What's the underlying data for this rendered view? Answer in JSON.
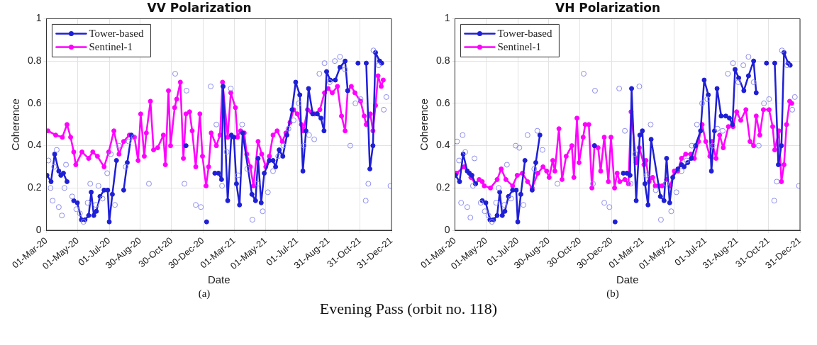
{
  "chart_data": [
    {
      "type": "line",
      "title": "VV Polarization",
      "xlabel": "Date",
      "ylabel": "Coherence",
      "annotations": [
        "(a)",
        "Evening Pass (orbit no. 118)"
      ],
      "xlim": [
        "2020-03-01",
        "2021-12-31"
      ],
      "xticks": [
        {
          "value": "2020-03-01",
          "label": "01-Mar-20"
        },
        {
          "value": "2020-05-01",
          "label": "01-May-20"
        },
        {
          "value": "2020-07-01",
          "label": "01-Jul-20"
        },
        {
          "value": "2020-08-30",
          "label": "30-Aug-20"
        },
        {
          "value": "2020-10-30",
          "label": "30-Oct-20"
        },
        {
          "value": "2020-12-30",
          "label": "30-Dec-20"
        },
        {
          "value": "2021-03-01",
          "label": "01-Mar-21"
        },
        {
          "value": "2021-05-01",
          "label": "01-May-21"
        },
        {
          "value": "2021-07-01",
          "label": "01-Jul-21"
        },
        {
          "value": "2021-08-31",
          "label": "31-Aug-21"
        },
        {
          "value": "2021-10-31",
          "label": "31-Oct-21"
        },
        {
          "value": "2021-12-31",
          "label": "31-Dec-21"
        }
      ],
      "ylim": [
        0,
        1
      ],
      "yticks": [
        0,
        0.2,
        0.4,
        0.6,
        0.8,
        1
      ],
      "grid": true,
      "legend": "top left",
      "marker": "circle",
      "series": [
        {
          "type": "scatter",
          "color": "#8c8cf0",
          "x": [
            "2020-03-05",
            "2020-03-09",
            "2020-03-13",
            "2020-03-16",
            "2020-03-21",
            "2020-03-25",
            "2020-03-31",
            "2020-04-05",
            "2020-04-08",
            "2020-04-20",
            "2020-04-28",
            "2020-05-05",
            "2020-05-12",
            "2020-05-20",
            "2020-05-25",
            "2020-06-05",
            "2020-06-10",
            "2020-06-18",
            "2020-06-27",
            "2020-07-04",
            "2020-07-12",
            "2020-07-20",
            "2020-08-02",
            "2020-08-08",
            "2020-08-18",
            "2020-09-16",
            "2020-11-06",
            "2020-11-24",
            "2020-11-28",
            "2020-12-16",
            "2020-12-26",
            "2021-01-14",
            "2021-01-25",
            "2021-02-05",
            "2021-02-14",
            "2021-02-22",
            "2021-03-08",
            "2021-03-16",
            "2021-03-26",
            "2021-04-05",
            "2021-04-15",
            "2021-04-25",
            "2021-05-05",
            "2021-05-15",
            "2021-05-25",
            "2021-06-04",
            "2021-06-14",
            "2021-06-24",
            "2021-07-04",
            "2021-07-14",
            "2021-07-24",
            "2021-08-03",
            "2021-08-13",
            "2021-08-23",
            "2021-09-02",
            "2021-09-12",
            "2021-09-22",
            "2021-10-02",
            "2021-10-12",
            "2021-10-22",
            "2021-11-01",
            "2021-11-11",
            "2021-11-16",
            "2021-11-26",
            "2021-12-06",
            "2021-12-16",
            "2021-12-21",
            "2021-12-29"
          ],
          "values": [
            0.33,
            0.2,
            0.14,
            0.3,
            0.38,
            0.11,
            0.07,
            0.2,
            0.31,
            0.16,
            0.1,
            0.08,
            0.04,
            0.13,
            0.22,
            0.12,
            0.21,
            0.15,
            0.27,
            0.36,
            0.12,
            0.4,
            0.3,
            0.42,
            0.44,
            0.22,
            0.74,
            0.22,
            0.66,
            0.12,
            0.11,
            0.68,
            0.5,
            0.21,
            0.37,
            0.67,
            0.26,
            0.5,
            0.29,
            0.05,
            0.22,
            0.09,
            0.18,
            0.28,
            0.35,
            0.4,
            0.48,
            0.52,
            0.6,
            0.4,
            0.45,
            0.43,
            0.74,
            0.79,
            0.7,
            0.8,
            0.82,
            0.76,
            0.4,
            0.6,
            0.62,
            0.14,
            0.22,
            0.85,
            0.78,
            0.57,
            0.63,
            0.21
          ]
        },
        {
          "name": "Tower-based",
          "color": "#1f1fd6",
          "x": [
            "2020-03-02",
            "2020-03-10",
            "2020-03-17",
            "2020-03-25",
            "2020-03-29",
            "2020-04-03",
            "2020-04-10",
            "2020-04-15",
            "2020-04-23",
            "2020-04-30",
            "2020-05-08",
            "2020-05-15",
            "2020-05-22",
            "2020-05-27",
            "2020-06-01",
            "2020-06-06",
            "2020-06-13",
            "2020-06-21",
            "2020-06-28",
            "2020-07-01",
            "2020-07-07",
            "2020-07-15",
            "2020-07-22",
            "2020-07-29",
            "2020-08-05",
            "2020-08-13",
            "2020-09-17",
            "2020-11-27",
            "2020-12-16",
            "2021-01-06",
            "2021-01-15",
            "2021-01-22",
            "2021-01-29",
            "2021-02-04",
            "2021-02-07",
            "2021-02-16",
            "2021-02-23",
            "2021-02-28",
            "2021-03-05",
            "2021-03-11",
            "2021-03-17",
            "2021-04-04",
            "2021-04-11",
            "2021-04-16",
            "2021-04-22",
            "2021-04-28",
            "2021-05-08",
            "2021-05-15",
            "2021-05-20",
            "2021-05-27",
            "2021-06-03",
            "2021-06-11",
            "2021-06-21",
            "2021-06-28",
            "2021-07-06",
            "2021-07-12",
            "2021-07-18",
            "2021-07-23",
            "2021-07-31",
            "2021-08-09",
            "2021-08-16",
            "2021-08-22",
            "2021-08-27",
            "2021-09-03",
            "2021-09-13",
            "2021-09-22",
            "2021-10-02",
            "2021-10-07",
            "2021-10-17",
            "2021-10-27",
            "2021-11-04",
            "2021-11-12",
            "2021-11-19",
            "2021-11-25",
            "2021-11-30",
            "2021-12-08",
            "2021-12-12"
          ],
          "values": [
            0.26,
            0.23,
            0.36,
            0.28,
            0.26,
            0.27,
            0.23,
            null,
            0.14,
            0.13,
            0.05,
            0.05,
            0.07,
            0.18,
            0.07,
            0.09,
            0.16,
            0.19,
            0.19,
            0.04,
            0.17,
            0.33,
            null,
            0.19,
            0.32,
            0.45,
            null,
            0.4,
            null,
            0.04,
            null,
            0.27,
            0.27,
            0.24,
            0.68,
            0.14,
            0.45,
            0.44,
            0.22,
            0.12,
            0.46,
            0.17,
            0.14,
            0.34,
            0.13,
            0.27,
            0.33,
            0.33,
            0.3,
            0.38,
            0.35,
            0.45,
            0.57,
            0.7,
            0.64,
            0.28,
            0.47,
            0.67,
            0.55,
            0.55,
            0.53,
            0.47,
            0.75,
            0.71,
            0.71,
            0.77,
            0.8,
            0.66,
            null,
            0.79,
            null,
            0.79,
            0.29,
            0.4,
            0.84,
            0.8,
            0.79
          ]
        },
        {
          "name": "Sentinel-1",
          "color": "#ff00ff",
          "x": [
            "2020-03-04",
            "2020-03-19",
            "2020-04-01",
            "2020-04-10",
            "2020-04-17",
            "2020-04-23",
            "2020-04-27",
            "2020-05-09",
            "2020-05-22",
            "2020-05-30",
            "2020-06-08",
            "2020-06-21",
            "2020-06-30",
            "2020-07-10",
            "2020-07-20",
            "2020-07-29",
            "2020-08-09",
            "2020-08-19",
            "2020-08-26",
            "2020-08-31",
            "2020-09-07",
            "2020-09-11",
            "2020-09-19",
            "2020-09-25",
            "2020-10-03",
            "2020-10-14",
            "2020-10-18",
            "2020-10-24",
            "2020-10-28",
            "2020-11-05",
            "2020-11-09",
            "2020-11-16",
            "2020-11-22",
            "2020-11-27",
            "2020-12-04",
            "2020-12-09",
            "2020-12-16",
            "2020-12-24",
            "2020-12-29",
            "2021-01-05",
            "2021-01-10",
            "2021-01-15",
            "2021-01-25",
            "2021-02-01",
            "2021-02-06",
            "2021-02-16",
            "2021-02-22",
            "2021-03-03",
            "2021-03-07",
            "2021-03-13",
            "2021-03-20",
            "2021-03-25",
            "2021-04-01",
            "2021-04-07",
            "2021-04-16",
            "2021-04-23",
            "2021-05-01",
            "2021-05-08",
            "2021-05-15",
            "2021-05-23",
            "2021-06-02",
            "2021-06-09",
            "2021-06-17",
            "2021-06-24",
            "2021-07-01",
            "2021-07-09",
            "2021-07-13",
            "2021-07-21",
            "2021-07-28",
            "2021-08-04",
            "2021-08-14",
            "2021-08-23",
            "2021-08-30",
            "2021-09-07",
            "2021-09-17",
            "2021-09-25",
            "2021-10-02",
            "2021-10-07",
            "2021-10-14",
            "2021-10-21",
            "2021-11-01",
            "2021-11-08",
            "2021-11-12",
            "2021-11-20",
            "2021-11-25",
            "2021-11-30",
            "2021-12-05",
            "2021-12-11",
            "2021-12-15"
          ],
          "values": [
            0.47,
            0.45,
            0.44,
            0.5,
            0.44,
            0.37,
            0.31,
            0.37,
            0.34,
            0.37,
            0.35,
            0.3,
            0.37,
            0.47,
            0.36,
            0.42,
            0.45,
            0.44,
            0.33,
            0.55,
            0.35,
            0.46,
            0.61,
            0.38,
            0.39,
            0.45,
            0.31,
            0.66,
            0.4,
            0.58,
            0.62,
            0.7,
            0.34,
            0.55,
            0.56,
            0.47,
            0.3,
            0.55,
            0.35,
            0.21,
            0.3,
            0.46,
            0.4,
            0.45,
            0.7,
            0.44,
            0.65,
            0.58,
            0.44,
            0.47,
            0.46,
            0.36,
            0.3,
            0.21,
            0.42,
            0.36,
            0.3,
            0.35,
            0.45,
            0.47,
            0.42,
            0.46,
            0.51,
            0.57,
            0.55,
            0.5,
            0.47,
            0.57,
            0.56,
            0.55,
            0.57,
            0.65,
            0.67,
            0.65,
            0.68,
            0.54,
            0.47,
            0.66,
            0.68,
            0.65,
            0.61,
            0.54,
            0.5,
            0.55,
            0.47,
            0.59,
            0.73,
            0.68,
            0.71
          ]
        }
      ]
    },
    {
      "type": "line",
      "title": "VH Polarization",
      "xlabel": "Date",
      "ylabel": "Coherence",
      "annotations": [
        "(b)"
      ],
      "xlim": [
        "2020-03-01",
        "2021-12-31"
      ],
      "xticks": [
        {
          "value": "2020-03-01",
          "label": "01-Mar-20"
        },
        {
          "value": "2020-05-01",
          "label": "01-May-20"
        },
        {
          "value": "2020-07-01",
          "label": "01-Jul-20"
        },
        {
          "value": "2020-08-30",
          "label": "30-Aug-20"
        },
        {
          "value": "2020-10-30",
          "label": "30-Oct-20"
        },
        {
          "value": "2020-12-30",
          "label": "30-Dec-20"
        },
        {
          "value": "2021-03-01",
          "label": "01-Mar-21"
        },
        {
          "value": "2021-05-01",
          "label": "01-May-21"
        },
        {
          "value": "2021-07-01",
          "label": "01-Jul-21"
        },
        {
          "value": "2021-08-31",
          "label": "31-Aug-21"
        },
        {
          "value": "2021-10-31",
          "label": "31-Oct-21"
        },
        {
          "value": "2021-12-31",
          "label": "31-Dec-21"
        }
      ],
      "ylim": [
        0,
        1
      ],
      "yticks": [
        0,
        0.2,
        0.4,
        0.6,
        0.8,
        1
      ],
      "grid": true,
      "legend": "top left",
      "marker": "circle",
      "series": [
        {
          "type": "scatter",
          "color": "#8c8cf0",
          "x": [
            "2020-03-05",
            "2020-03-09",
            "2020-03-13",
            "2020-03-16",
            "2020-03-21",
            "2020-03-25",
            "2020-03-31",
            "2020-04-05",
            "2020-04-08",
            "2020-04-20",
            "2020-04-28",
            "2020-05-05",
            "2020-05-12",
            "2020-05-20",
            "2020-05-25",
            "2020-06-05",
            "2020-06-10",
            "2020-06-18",
            "2020-06-27",
            "2020-07-04",
            "2020-07-12",
            "2020-07-20",
            "2020-08-02",
            "2020-08-08",
            "2020-08-18",
            "2020-09-16",
            "2020-11-06",
            "2020-11-24",
            "2020-11-28",
            "2020-12-16",
            "2020-12-26",
            "2021-01-14",
            "2021-01-25",
            "2021-02-05",
            "2021-02-14",
            "2021-02-22",
            "2021-03-08",
            "2021-03-16",
            "2021-03-26",
            "2021-04-05",
            "2021-04-15",
            "2021-04-25",
            "2021-05-05",
            "2021-05-15",
            "2021-05-25",
            "2021-06-04",
            "2021-06-14",
            "2021-06-24",
            "2021-07-04",
            "2021-07-14",
            "2021-07-24",
            "2021-08-03",
            "2021-08-13",
            "2021-08-23",
            "2021-09-02",
            "2021-09-12",
            "2021-09-22",
            "2021-10-02",
            "2021-10-12",
            "2021-10-22",
            "2021-11-01",
            "2021-11-11",
            "2021-11-16",
            "2021-11-26",
            "2021-12-06",
            "2021-12-16",
            "2021-12-21",
            "2021-12-29"
          ],
          "values": [
            0.42,
            0.33,
            0.13,
            0.45,
            0.37,
            0.11,
            0.06,
            0.21,
            0.34,
            0.13,
            0.09,
            0.07,
            0.04,
            0.13,
            0.2,
            0.12,
            0.31,
            0.15,
            0.4,
            0.39,
            0.12,
            0.45,
            0.29,
            0.47,
            0.38,
            0.22,
            0.74,
            0.22,
            0.66,
            0.13,
            0.11,
            0.67,
            0.47,
            0.22,
            0.36,
            0.68,
            0.26,
            0.5,
            0.19,
            0.05,
            0.22,
            0.09,
            0.18,
            0.28,
            0.33,
            0.4,
            0.5,
            0.6,
            0.62,
            0.4,
            0.48,
            0.47,
            0.74,
            0.79,
            0.7,
            0.78,
            0.82,
            0.7,
            0.4,
            0.6,
            0.62,
            0.14,
            0.23,
            0.85,
            0.78,
            0.57,
            0.63,
            0.21
          ]
        },
        {
          "name": "Tower-based",
          "color": "#1f1fd6",
          "x": [
            "2020-03-02",
            "2020-03-10",
            "2020-03-17",
            "2020-03-25",
            "2020-03-29",
            "2020-04-03",
            "2020-04-10",
            "2020-04-15",
            "2020-04-23",
            "2020-04-30",
            "2020-05-08",
            "2020-05-15",
            "2020-05-22",
            "2020-05-27",
            "2020-06-01",
            "2020-06-06",
            "2020-06-13",
            "2020-06-21",
            "2020-06-28",
            "2020-07-01",
            "2020-07-07",
            "2020-07-15",
            "2020-07-22",
            "2020-07-29",
            "2020-08-05",
            "2020-08-13",
            "2020-09-17",
            "2020-11-27",
            "2020-12-16",
            "2021-01-06",
            "2021-01-15",
            "2021-01-22",
            "2021-01-29",
            "2021-02-04",
            "2021-02-07",
            "2021-02-16",
            "2021-02-23",
            "2021-02-28",
            "2021-03-05",
            "2021-03-11",
            "2021-03-17",
            "2021-04-04",
            "2021-04-11",
            "2021-04-16",
            "2021-04-22",
            "2021-04-28",
            "2021-05-08",
            "2021-05-15",
            "2021-05-20",
            "2021-05-27",
            "2021-06-03",
            "2021-06-11",
            "2021-06-21",
            "2021-06-28",
            "2021-07-06",
            "2021-07-12",
            "2021-07-18",
            "2021-07-23",
            "2021-07-31",
            "2021-08-09",
            "2021-08-16",
            "2021-08-22",
            "2021-08-27",
            "2021-09-03",
            "2021-09-13",
            "2021-09-22",
            "2021-10-02",
            "2021-10-07",
            "2021-10-17",
            "2021-10-27",
            "2021-11-04",
            "2021-11-12",
            "2021-11-19",
            "2021-11-25",
            "2021-11-30",
            "2021-12-08",
            "2021-12-12"
          ],
          "values": [
            0.26,
            0.23,
            0.36,
            0.28,
            0.27,
            0.26,
            0.22,
            null,
            0.14,
            0.13,
            0.05,
            0.05,
            0.07,
            0.18,
            0.07,
            0.09,
            0.16,
            0.19,
            0.19,
            0.04,
            0.17,
            0.33,
            null,
            0.19,
            0.32,
            0.45,
            null,
            0.4,
            null,
            0.04,
            null,
            0.27,
            0.27,
            0.26,
            0.67,
            0.14,
            0.45,
            0.47,
            0.22,
            0.12,
            0.43,
            0.16,
            0.14,
            0.34,
            0.13,
            0.25,
            0.29,
            0.31,
            0.3,
            0.32,
            0.34,
            0.4,
            0.47,
            0.71,
            0.64,
            0.28,
            0.47,
            0.67,
            0.54,
            0.54,
            0.53,
            0.5,
            0.76,
            0.72,
            0.66,
            0.73,
            0.8,
            0.65,
            null,
            0.79,
            null,
            0.79,
            0.31,
            0.4,
            0.84,
            0.79,
            0.78
          ]
        },
        {
          "name": "Sentinel-1",
          "color": "#ff00ff",
          "x": [
            "2020-03-04",
            "2020-03-19",
            "2020-04-01",
            "2020-04-10",
            "2020-04-17",
            "2020-04-23",
            "2020-04-27",
            "2020-05-09",
            "2020-05-22",
            "2020-05-30",
            "2020-06-08",
            "2020-06-21",
            "2020-06-30",
            "2020-07-10",
            "2020-07-20",
            "2020-07-29",
            "2020-08-09",
            "2020-08-19",
            "2020-08-26",
            "2020-08-31",
            "2020-09-07",
            "2020-09-11",
            "2020-09-19",
            "2020-09-25",
            "2020-10-03",
            "2020-10-14",
            "2020-10-18",
            "2020-10-24",
            "2020-10-28",
            "2020-11-05",
            "2020-11-09",
            "2020-11-16",
            "2020-11-22",
            "2020-11-27",
            "2020-12-04",
            "2020-12-09",
            "2020-12-16",
            "2020-12-24",
            "2020-12-29",
            "2021-01-05",
            "2021-01-10",
            "2021-01-15",
            "2021-01-25",
            "2021-02-01",
            "2021-02-06",
            "2021-02-16",
            "2021-02-22",
            "2021-03-03",
            "2021-03-07",
            "2021-03-13",
            "2021-03-20",
            "2021-03-25",
            "2021-04-01",
            "2021-04-07",
            "2021-04-16",
            "2021-04-23",
            "2021-05-01",
            "2021-05-08",
            "2021-05-15",
            "2021-05-23",
            "2021-06-02",
            "2021-06-09",
            "2021-06-17",
            "2021-06-24",
            "2021-07-01",
            "2021-07-09",
            "2021-07-13",
            "2021-07-21",
            "2021-07-28",
            "2021-08-04",
            "2021-08-14",
            "2021-08-23",
            "2021-08-30",
            "2021-09-07",
            "2021-09-17",
            "2021-09-25",
            "2021-10-02",
            "2021-10-07",
            "2021-10-14",
            "2021-10-21",
            "2021-11-01",
            "2021-11-08",
            "2021-11-12",
            "2021-11-20",
            "2021-11-25",
            "2021-11-30",
            "2021-12-05",
            "2021-12-11",
            "2021-12-15"
          ],
          "values": [
            0.27,
            0.3,
            0.25,
            0.22,
            0.24,
            0.23,
            0.21,
            0.2,
            0.24,
            0.29,
            0.24,
            0.21,
            0.26,
            0.27,
            0.23,
            0.2,
            0.27,
            0.3,
            0.28,
            0.25,
            0.33,
            0.28,
            0.48,
            0.24,
            0.35,
            0.4,
            0.25,
            0.53,
            0.32,
            0.44,
            0.5,
            0.5,
            0.2,
            0.4,
            0.39,
            0.28,
            0.44,
            0.23,
            0.44,
            0.2,
            0.27,
            0.23,
            0.24,
            0.22,
            0.56,
            0.32,
            0.39,
            0.31,
            0.33,
            0.23,
            0.25,
            0.21,
            0.21,
            0.21,
            0.24,
            0.21,
            0.28,
            0.28,
            0.34,
            0.36,
            0.36,
            0.34,
            0.42,
            0.5,
            0.42,
            0.35,
            0.42,
            0.34,
            0.45,
            0.39,
            0.49,
            0.49,
            0.56,
            0.52,
            0.57,
            0.42,
            0.4,
            0.54,
            0.45,
            0.57,
            0.57,
            0.49,
            0.38,
            0.47,
            0.23,
            0.31,
            0.5,
            0.61,
            0.6
          ]
        }
      ]
    }
  ]
}
